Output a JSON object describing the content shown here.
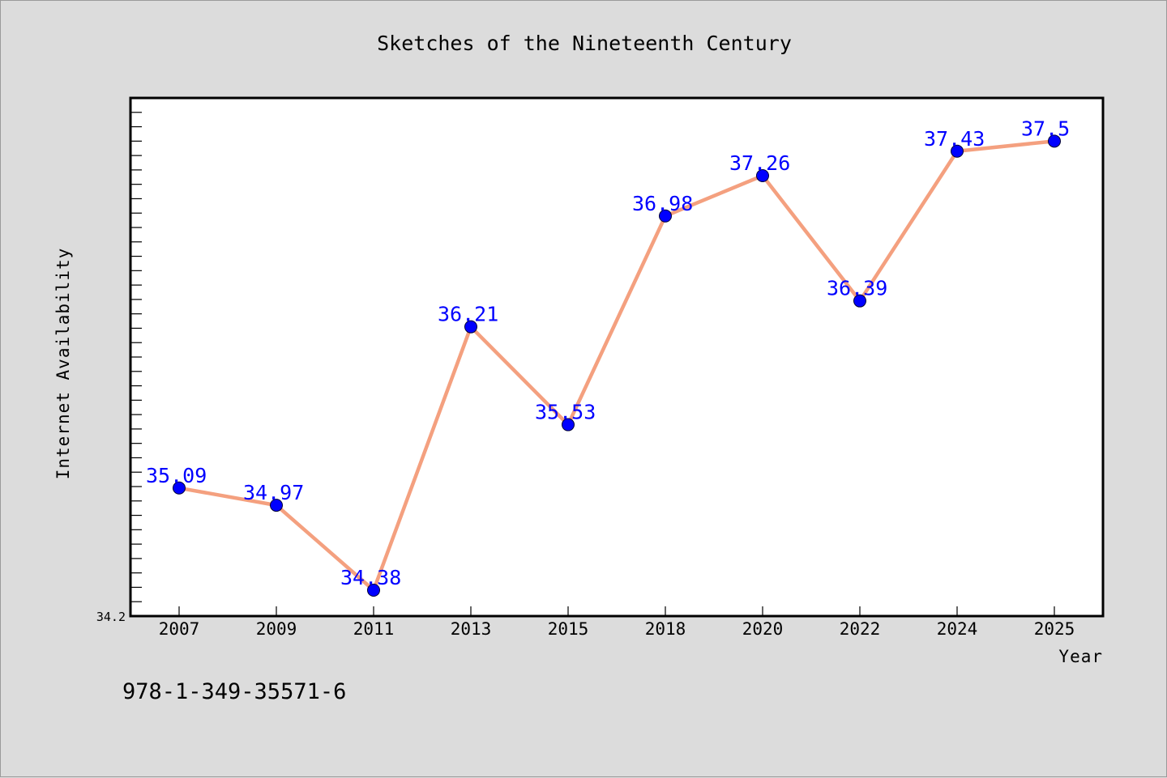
{
  "chart_data": {
    "type": "line",
    "title": "Sketches of the Nineteenth Century",
    "xlabel": "Year",
    "ylabel": "Internet Availability",
    "categories": [
      "2007",
      "2009",
      "2011",
      "2013",
      "2015",
      "2018",
      "2020",
      "2022",
      "2024",
      "2025"
    ],
    "values": [
      35.09,
      34.97,
      34.38,
      36.21,
      35.53,
      36.98,
      37.26,
      36.39,
      37.43,
      37.5
    ],
    "data_labels": [
      "35.09",
      "34.97",
      "34.38",
      "36.21",
      "35.53",
      "36.98",
      "37.26",
      "36.39",
      "37.43",
      "37.5"
    ],
    "ylim": [
      34.2,
      37.8
    ],
    "y_min_label": "34.2",
    "grid": false,
    "legend": "none",
    "line_color": "#f4a07f",
    "marker_color": "#0000ff",
    "label_color": "#0000ff"
  },
  "footer": {
    "isbn": "978-1-349-35571-6"
  }
}
